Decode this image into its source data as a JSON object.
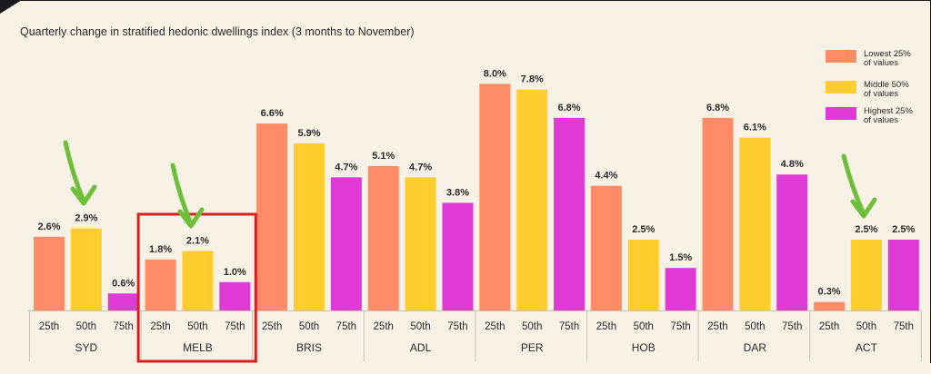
{
  "chart_data": {
    "type": "bar",
    "title": "Quarterly change in stratified hedonic dwellings index (3 months to November)",
    "xlabel": "",
    "ylabel": "",
    "ylim": [
      0,
      8.8
    ],
    "grid": false,
    "legend_position": "top-right",
    "groups": [
      "SYD",
      "MELB",
      "BRIS",
      "ADL",
      "PER",
      "HOB",
      "DAR",
      "ACT"
    ],
    "sub_categories": [
      "25th",
      "50th",
      "75th"
    ],
    "series": [
      {
        "name": "Lowest 25% of values",
        "legend_line1": "Lowest 25%",
        "legend_line2": "of values",
        "color": "#ff8c66",
        "values": [
          2.6,
          1.8,
          6.6,
          5.1,
          8.0,
          4.4,
          6.8,
          0.3
        ],
        "labels": [
          "2.6%",
          "1.8%",
          "6.6%",
          "5.1%",
          "8.0%",
          "4.4%",
          "6.8%",
          "0.3%"
        ]
      },
      {
        "name": "Middle 50% of values",
        "legend_line1": "Middle 50%",
        "legend_line2": "of values",
        "color": "#ffcd2e",
        "values": [
          2.9,
          2.1,
          5.9,
          4.7,
          7.8,
          2.5,
          6.1,
          2.5
        ],
        "labels": [
          "2.9%",
          "2.1%",
          "5.9%",
          "4.7%",
          "7.8%",
          "2.5%",
          "6.1%",
          "2.5%"
        ]
      },
      {
        "name": "Highest 25% of values",
        "legend_line1": "Highest 25%",
        "legend_line2": "of values",
        "color": "#e03ad6",
        "values": [
          0.6,
          1.0,
          4.7,
          3.8,
          6.8,
          1.5,
          4.8,
          2.5
        ],
        "labels": [
          "0.6%",
          "1.0%",
          "4.7%",
          "3.8%",
          "6.8%",
          "1.5%",
          "4.8%",
          "2.5%"
        ]
      }
    ],
    "annotations": {
      "highlight_group": "MELB",
      "highlight_color": "#d92020",
      "arrow_color": "#6dbf3a",
      "arrows_point_to": [
        "SYD 50th",
        "MELB 50th",
        "ACT 50th"
      ]
    }
  }
}
